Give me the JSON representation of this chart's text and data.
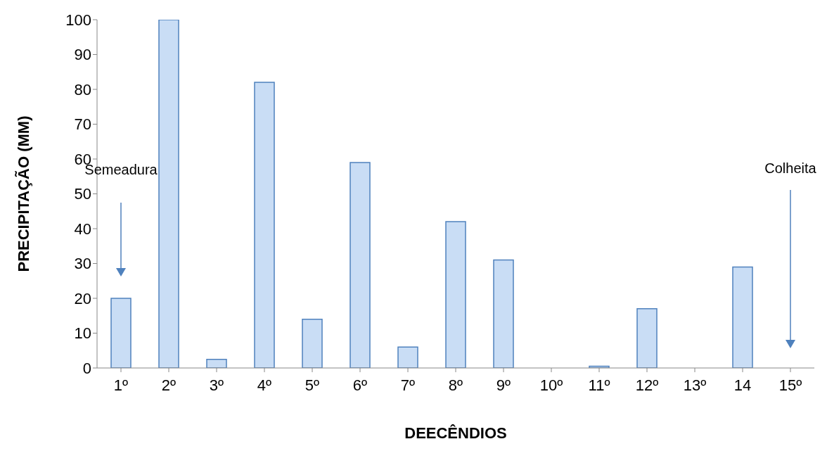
{
  "chart_data": {
    "type": "bar",
    "xlabel": "DEECÊNDIOS",
    "ylabel": "PRECIPITAÇÃO (MM)",
    "categories": [
      "1º",
      "2º",
      "3º",
      "4º",
      "5º",
      "6º",
      "7º",
      "8º",
      "9º",
      "10º",
      "11º",
      "12º",
      "13º",
      "14",
      "15º"
    ],
    "values": [
      20,
      100,
      2.5,
      82,
      14,
      59,
      6,
      42,
      31,
      0,
      0.5,
      17,
      0,
      29,
      0
    ],
    "color": "#c9ddf5",
    "ylim": [
      0,
      100
    ],
    "yticks": [
      0,
      10,
      20,
      30,
      40,
      50,
      60,
      70,
      80,
      90,
      100
    ],
    "grid": false,
    "legend": false,
    "annotations": [
      "Semeadura",
      "Colheita"
    ]
  }
}
